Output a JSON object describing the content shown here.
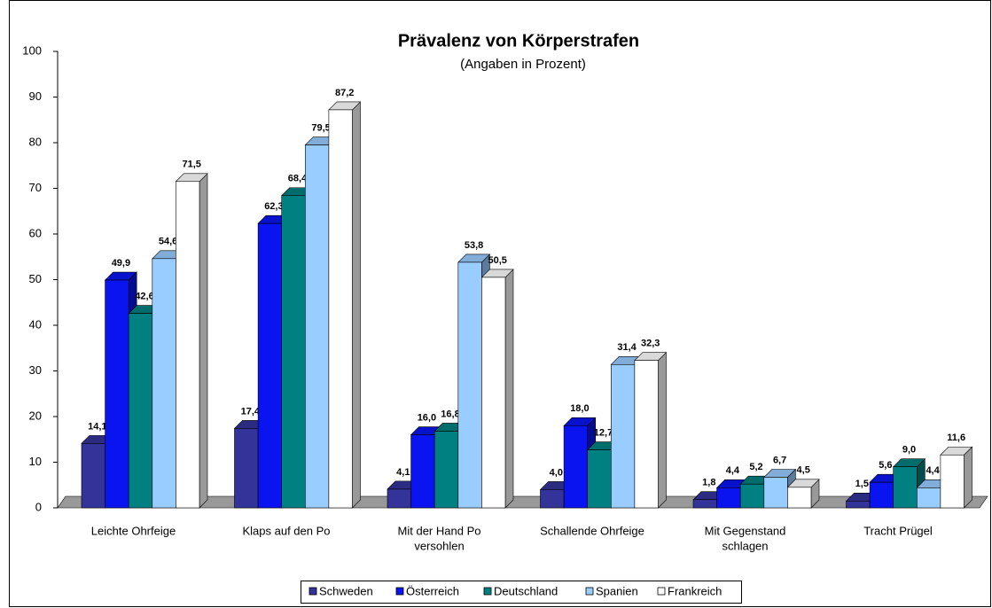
{
  "chart_data": {
    "type": "bar3d",
    "title": "Prävalenz von Körperstrafen",
    "subtitle": "(Angaben in Prozent)",
    "categories": [
      [
        "Leichte Ohrfeige"
      ],
      [
        "Klaps auf den Po"
      ],
      [
        "Mit der Hand  Po",
        "versohlen"
      ],
      [
        "Schallende Ohrfeige"
      ],
      [
        "Mit Gegenstand",
        "schlagen"
      ],
      [
        "Tracht Prügel"
      ]
    ],
    "series": [
      {
        "name": "Schweden",
        "color": "#333399",
        "values": [
          14.1,
          17.4,
          4.1,
          4.0,
          1.8,
          1.5
        ],
        "value_labels": [
          "14,1",
          "17,4",
          "4,1",
          "4,0",
          "1,8",
          "1,5"
        ]
      },
      {
        "name": "Österreich",
        "color": "#0a14f0",
        "values": [
          49.9,
          62.3,
          16.0,
          18.0,
          4.4,
          5.6
        ],
        "value_labels": [
          "49,9",
          "62,3",
          "16,0",
          "18,0",
          "4,4",
          "5,6"
        ]
      },
      {
        "name": "Deutschland",
        "color": "#008080",
        "values": [
          42.6,
          68.4,
          16.8,
          12.7,
          5.2,
          9.0
        ],
        "value_labels": [
          "42,6",
          "68,4",
          "16,8",
          "12,7",
          "5,2",
          "9,0"
        ]
      },
      {
        "name": "Spanien",
        "color": "#99ccff",
        "values": [
          54.6,
          79.5,
          53.8,
          31.4,
          6.7,
          4.4
        ],
        "value_labels": [
          "54,6",
          "79,5",
          "53,8",
          "31,4",
          "6,7",
          "4,4"
        ]
      },
      {
        "name": "Frankreich",
        "color": "#ffffff",
        "values": [
          71.5,
          87.2,
          50.5,
          32.3,
          4.5,
          11.6
        ],
        "value_labels": [
          "71,5",
          "87,2",
          "50,5",
          "32,3",
          "4,5",
          "11,6"
        ]
      }
    ],
    "ylim": [
      0,
      100
    ],
    "yticks": [
      0,
      10,
      20,
      30,
      40,
      50,
      60,
      70,
      80,
      90,
      100
    ],
    "legend": "bottom"
  }
}
